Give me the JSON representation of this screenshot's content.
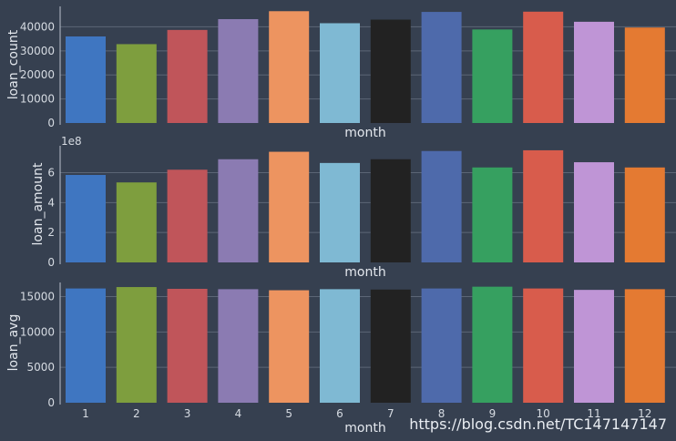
{
  "chart_data": [
    {
      "type": "bar",
      "categories": [
        "1",
        "2",
        "3",
        "4",
        "5",
        "6",
        "7",
        "8",
        "9",
        "10",
        "11",
        "12"
      ],
      "values": [
        36000,
        32800,
        38700,
        43200,
        46500,
        41500,
        43000,
        46200,
        38900,
        46300,
        42100,
        39700
      ],
      "xlabel": "month",
      "ylabel": "loan_count",
      "ylim": [
        0,
        48500
      ],
      "yticks": [
        0,
        10000,
        20000,
        30000,
        40000
      ],
      "ytick_labels": [
        "0",
        "10000",
        "20000",
        "30000",
        "40000"
      ],
      "show_xticks": false,
      "grid": "y"
    },
    {
      "type": "bar",
      "categories": [
        "1",
        "2",
        "3",
        "4",
        "5",
        "6",
        "7",
        "8",
        "9",
        "10",
        "11",
        "12"
      ],
      "values": [
        585000000.0,
        535000000.0,
        620000000.0,
        690000000.0,
        740000000.0,
        665000000.0,
        690000000.0,
        745000000.0,
        635000000.0,
        750000000.0,
        670000000.0,
        635000000.0
      ],
      "xlabel": "month",
      "ylabel": "loan_amount",
      "ylim": [
        0,
        780000000.0
      ],
      "yticks": [
        0,
        200000000.0,
        400000000.0,
        600000000.0
      ],
      "ytick_labels": [
        "0",
        "2",
        "4",
        "6"
      ],
      "offset_text": "1e8",
      "show_xticks": false,
      "grid": "y"
    },
    {
      "type": "bar",
      "categories": [
        "1",
        "2",
        "3",
        "4",
        "5",
        "6",
        "7",
        "8",
        "9",
        "10",
        "11",
        "12"
      ],
      "values": [
        16150,
        16350,
        16100,
        16050,
        15900,
        16050,
        16000,
        16150,
        16400,
        16150,
        15950,
        16050
      ],
      "xlabel": "month",
      "ylabel": "loan_avg",
      "ylim": [
        0,
        17000
      ],
      "yticks": [
        0,
        5000,
        10000,
        15000
      ],
      "ytick_labels": [
        "0",
        "5000",
        "10000",
        "15000"
      ],
      "show_xticks": true,
      "grid": "y"
    }
  ],
  "colors": {
    "background": "#364050",
    "grid": "#5c6676",
    "axis": "#b9c1cc",
    "bars": [
      "#3f76c1",
      "#7e9e3e",
      "#c0555a",
      "#8b7bb2",
      "#ed9460",
      "#7fb9d3",
      "#222222",
      "#4e6aab",
      "#36a060",
      "#d85c4c",
      "#bf95d6",
      "#e47a32"
    ]
  },
  "watermark": "https://blog.csdn.net/TC147147147"
}
